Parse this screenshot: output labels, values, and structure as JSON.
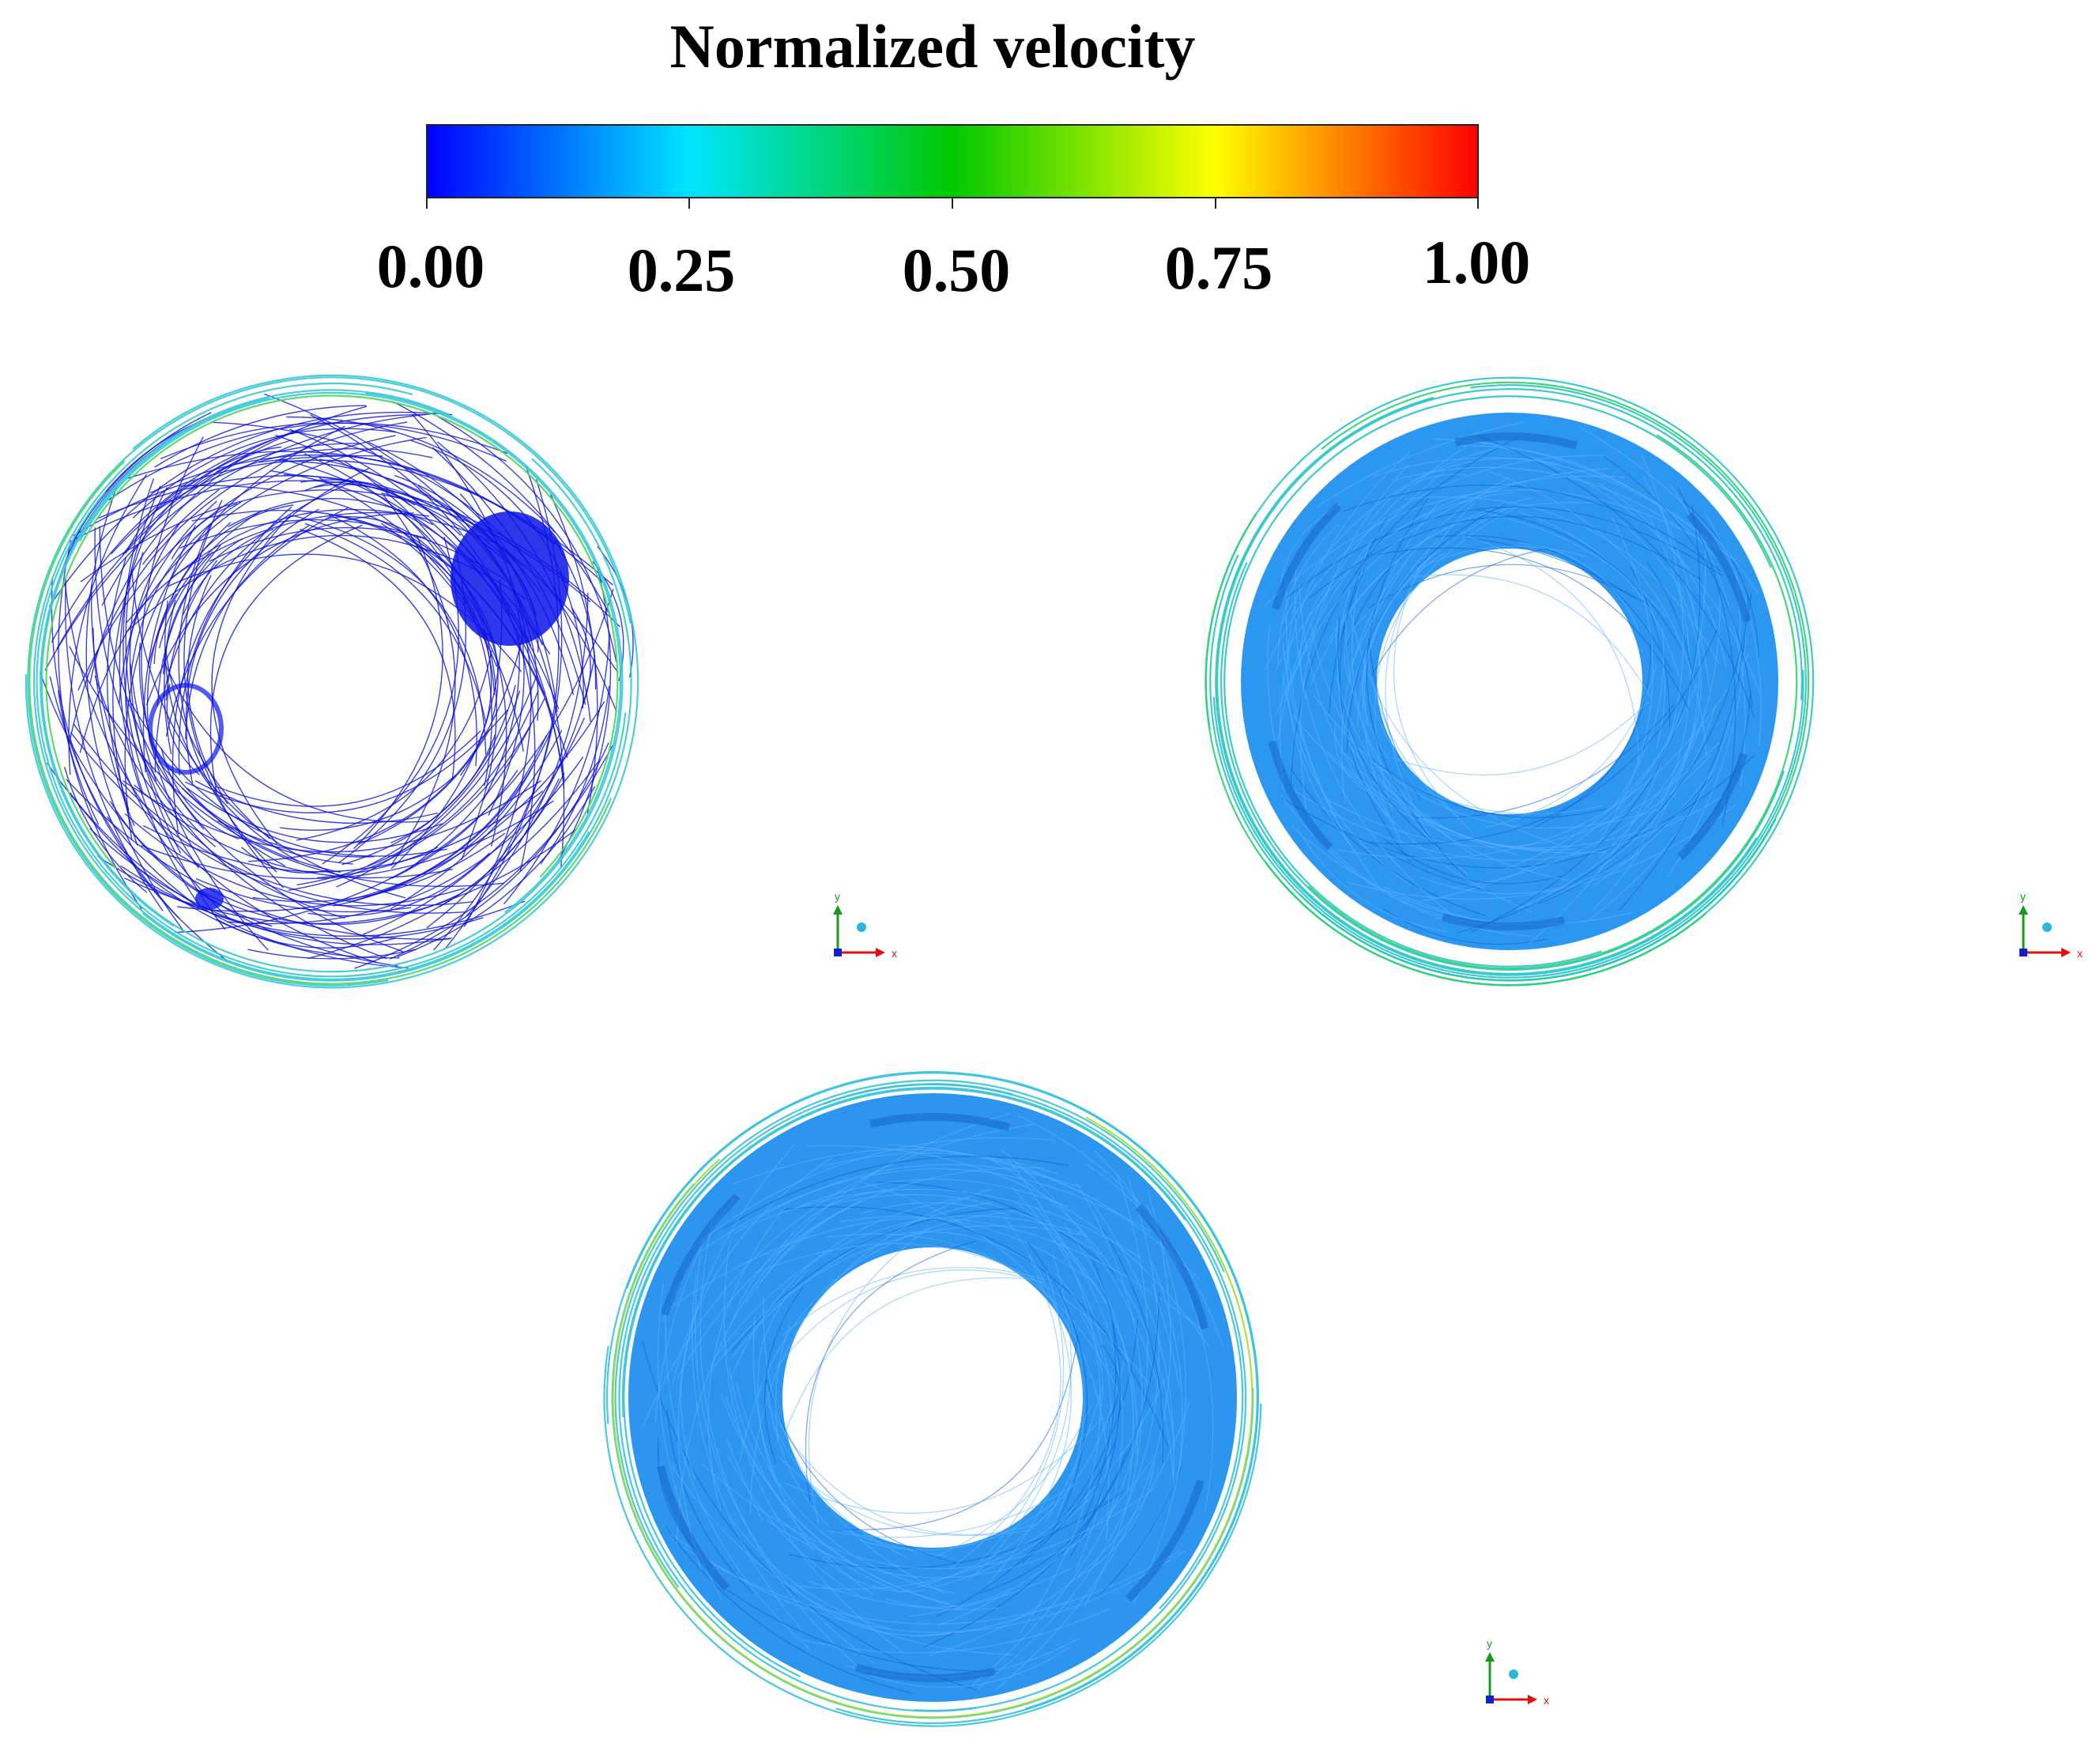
{
  "colorbar": {
    "title": "Normalized velocity",
    "ticks": [
      "0.00",
      "0.25",
      "0.50",
      "0.75",
      "1.00"
    ],
    "stops": [
      "#0000ff",
      "#00e5ff",
      "#00c800",
      "#ffff00",
      "#ff0000"
    ]
  },
  "panels": [
    {
      "name": "panel-top-left",
      "fill": "#0a14e8",
      "rim_color": "#38c9d6",
      "rim_accent": "#4cd65a",
      "style": "sparse"
    },
    {
      "name": "panel-top-right",
      "fill": "#1a8ef0",
      "rim_color": "#29c4c8",
      "rim_accent": "#2fd26a",
      "style": "dense"
    },
    {
      "name": "panel-bottom",
      "fill": "#1a8cee",
      "rim_color": "#36c2dc",
      "rim_accent": "#a7dd2a",
      "style": "dense"
    }
  ],
  "axis_triad": {
    "x_label": "x",
    "y_label": "y",
    "x_color": "#e01010",
    "y_color": "#1a9a1a",
    "origin_color": "#1020d0"
  }
}
